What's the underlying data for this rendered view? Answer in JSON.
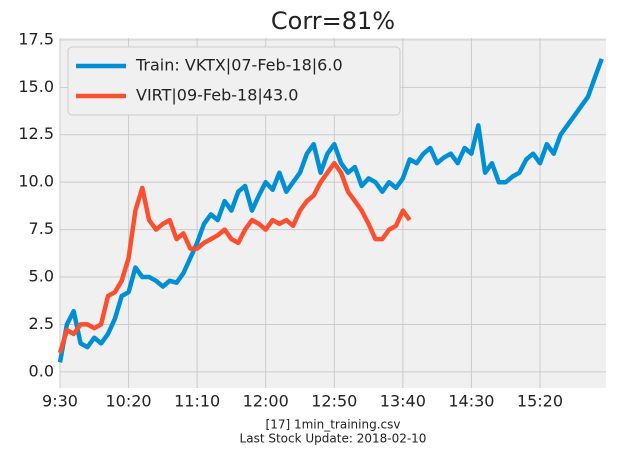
{
  "chart_data": {
    "type": "line",
    "title": "Corr=81%",
    "categories": [
      "9:30",
      null,
      null,
      null,
      null,
      null,
      null,
      null,
      null,
      null,
      "10:20",
      null,
      null,
      null,
      null,
      null,
      null,
      null,
      null,
      null,
      "11:10",
      null,
      null,
      null,
      null,
      null,
      null,
      null,
      null,
      null,
      "12:00",
      null,
      null,
      null,
      null,
      null,
      null,
      null,
      null,
      null,
      "12:50",
      null,
      null,
      null,
      null,
      null,
      null,
      null,
      null,
      null,
      "13:40",
      null,
      null,
      null,
      null,
      null,
      null,
      null,
      null,
      null,
      "14:30",
      null,
      null,
      null,
      null,
      null,
      null,
      null,
      null,
      null,
      "15:20",
      null,
      null,
      null,
      null,
      null,
      null,
      null,
      null,
      null
    ],
    "series": [
      {
        "name": "Train: VKTX|07-Feb-18|6.0",
        "color": "#008fd5",
        "values": [
          0.5,
          2.5,
          3.2,
          1.5,
          1.3,
          1.8,
          1.5,
          2.0,
          2.8,
          4.0,
          4.2,
          5.5,
          5.0,
          5.0,
          4.8,
          4.5,
          4.8,
          4.7,
          5.2,
          6.0,
          6.8,
          7.8,
          8.3,
          8.0,
          9.0,
          8.5,
          9.5,
          9.8,
          8.5,
          9.3,
          10.0,
          9.6,
          10.5,
          9.5,
          10.0,
          10.5,
          11.5,
          12.0,
          10.5,
          11.5,
          12.0,
          11.0,
          10.5,
          10.8,
          9.8,
          10.2,
          10.0,
          9.5,
          10.0,
          9.7,
          10.2,
          11.2,
          11.0,
          11.5,
          11.8,
          11.0,
          11.3,
          11.5,
          11.0,
          11.8,
          11.5,
          13.0,
          10.5,
          11.0,
          10.0,
          10.0,
          10.3,
          10.5,
          11.2,
          11.5,
          11.0,
          12.0,
          11.5,
          12.5,
          13.0,
          13.5,
          14.0,
          14.5,
          15.5,
          16.5
        ]
      },
      {
        "name": "VIRT|09-Feb-18|43.0",
        "color": "#fc4f30",
        "values": [
          1.0,
          2.2,
          2.0,
          2.5,
          2.5,
          2.3,
          2.5,
          4.0,
          4.2,
          4.8,
          6.0,
          8.5,
          9.7,
          8.0,
          7.5,
          7.8,
          8.0,
          7.0,
          7.3,
          6.5,
          6.5,
          6.8,
          7.0,
          7.2,
          7.5,
          7.0,
          6.8,
          7.5,
          8.0,
          7.8,
          7.5,
          8.0,
          7.8,
          8.0,
          7.7,
          8.5,
          9.0,
          9.3,
          10.0,
          10.5,
          11.0,
          10.5,
          9.5,
          9.0,
          8.5,
          7.8,
          7.0,
          7.0,
          7.5,
          7.7,
          8.5,
          8.0,
          null,
          null,
          null,
          null,
          null,
          null,
          null,
          null,
          null,
          null,
          null,
          null,
          null,
          null,
          null,
          null,
          null,
          null,
          null,
          null,
          null,
          null,
          null,
          null,
          null,
          null,
          null,
          null
        ]
      }
    ],
    "ylim": [
      -0.85,
      17.6
    ],
    "yticks": [
      {
        "value": 0,
        "label": "0.0"
      },
      2.5,
      {
        "value": 5,
        "label": "5.0"
      },
      7.5,
      {
        "value": 10,
        "label": "10.0"
      },
      12.5,
      {
        "value": 15,
        "label": "15.0"
      },
      17.5
    ],
    "grid": true,
    "legend": "upper left",
    "footer": [
      "[17] 1min_training.csv",
      "Last Stock Update: 2018-02-10"
    ]
  }
}
